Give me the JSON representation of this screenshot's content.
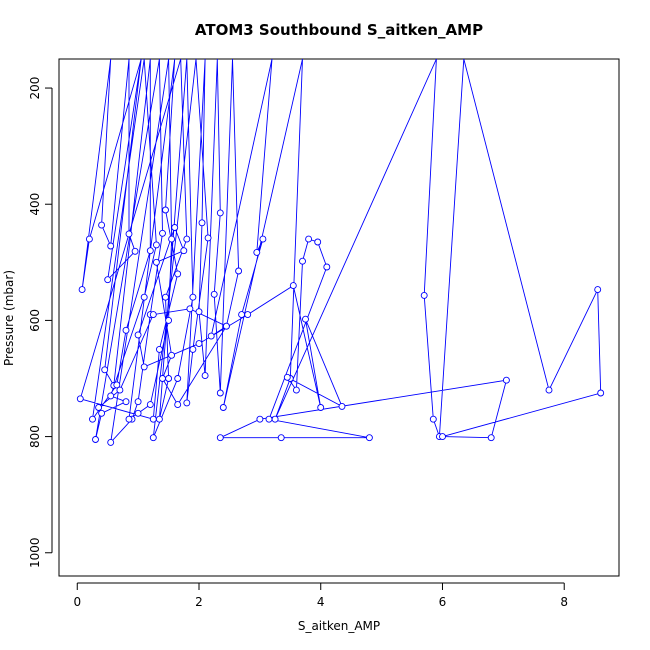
{
  "chart_data": {
    "type": "line",
    "title": "ATOM3 Southbound S_aitken_AMP",
    "xlabel": "S_aitken_AMP",
    "ylabel": "Pressure (mbar)",
    "xlim": [
      -0.3,
      8.9
    ],
    "ylim": [
      1040,
      150
    ],
    "y_reversed": true,
    "grid": false,
    "x_ticks": [
      "0",
      "2",
      "4",
      "6",
      "8"
    ],
    "y_ticks": [
      "200",
      "400",
      "600",
      "800",
      "1000"
    ],
    "series": [
      {
        "color": "#0000ff",
        "marker": "open-circle",
        "points": [
          [
            1.05,
            150
          ],
          [
            0.2,
            460
          ],
          [
            0.08,
            547
          ],
          [
            0.55,
            150
          ],
          [
            0.4,
            436
          ],
          [
            0.55,
            472
          ],
          [
            0.85,
            150
          ],
          [
            0.85,
            451
          ],
          [
            0.95,
            481
          ],
          [
            0.5,
            530
          ],
          [
            1.05,
            150
          ],
          [
            0.45,
            685
          ],
          [
            0.6,
            712
          ],
          [
            1.2,
            150
          ],
          [
            1.2,
            480
          ],
          [
            0.8,
            617
          ],
          [
            0.65,
            711
          ],
          [
            0.25,
            770
          ],
          [
            1.1,
            150
          ],
          [
            1.3,
            470
          ],
          [
            1.1,
            560
          ],
          [
            0.55,
            730
          ],
          [
            0.8,
            740
          ],
          [
            0.4,
            760
          ],
          [
            0.3,
            805
          ],
          [
            1.35,
            150
          ],
          [
            1.4,
            450
          ],
          [
            1.2,
            590
          ],
          [
            1.0,
            740
          ],
          [
            0.9,
            770
          ],
          [
            0.55,
            810
          ],
          [
            1.5,
            150
          ],
          [
            1.55,
            460
          ],
          [
            1.5,
            600
          ],
          [
            1.2,
            745
          ],
          [
            1.0,
            760
          ],
          [
            0.85,
            770
          ],
          [
            1.6,
            150
          ],
          [
            1.45,
            410
          ],
          [
            1.65,
            520
          ],
          [
            1.35,
            650
          ],
          [
            1.25,
            770
          ],
          [
            0.05,
            735
          ],
          [
            1.7,
            150
          ],
          [
            1.8,
            460
          ],
          [
            1.45,
            560
          ],
          [
            1.5,
            700
          ],
          [
            1.35,
            770
          ],
          [
            1.8,
            150
          ],
          [
            1.9,
            560
          ],
          [
            1.65,
            700
          ],
          [
            1.25,
            802
          ],
          [
            1.95,
            150
          ],
          [
            2.15,
            458
          ],
          [
            1.9,
            650
          ],
          [
            1.8,
            742
          ],
          [
            2.1,
            150
          ],
          [
            2.05,
            432
          ],
          [
            2.0,
            585
          ],
          [
            2.1,
            695
          ],
          [
            2.3,
            150
          ],
          [
            2.35,
            415
          ],
          [
            2.25,
            555
          ],
          [
            2.35,
            725
          ],
          [
            2.55,
            150
          ],
          [
            2.65,
            515
          ],
          [
            2.45,
            610
          ],
          [
            2.2,
            627
          ],
          [
            3.2,
            150
          ],
          [
            2.95,
            483
          ],
          [
            3.05,
            460
          ],
          [
            2.7,
            590
          ],
          [
            2.4,
            750
          ],
          [
            3.7,
            150
          ],
          [
            3.5,
            700
          ],
          [
            3.25,
            770
          ],
          [
            5.9,
            150
          ],
          [
            5.7,
            557
          ],
          [
            5.85,
            770
          ],
          [
            5.95,
            800
          ],
          [
            6.35,
            150
          ],
          [
            7.75,
            720
          ],
          [
            8.55,
            547
          ],
          [
            8.6,
            725
          ],
          [
            6.0,
            800
          ],
          [
            6.8,
            802
          ],
          [
            7.05,
            703
          ],
          [
            3.0,
            770
          ],
          [
            2.35,
            802
          ],
          [
            3.35,
            802
          ],
          [
            4.8,
            802
          ],
          [
            3.15,
            770
          ],
          [
            4.1,
            508
          ],
          [
            3.95,
            465
          ],
          [
            3.8,
            460
          ],
          [
            3.7,
            498
          ],
          [
            3.6,
            720
          ],
          [
            3.45,
            698
          ],
          [
            4.35,
            748
          ],
          [
            3.75,
            598
          ],
          [
            4.0,
            750
          ],
          [
            3.55,
            540
          ],
          [
            2.8,
            590
          ],
          [
            2.0,
            640
          ],
          [
            1.1,
            680
          ],
          [
            1.0,
            625
          ],
          [
            1.6,
            440
          ],
          [
            1.75,
            480
          ],
          [
            1.3,
            500
          ],
          [
            1.55,
            660
          ],
          [
            1.4,
            700
          ],
          [
            1.65,
            745
          ],
          [
            2.45,
            610
          ],
          [
            1.85,
            580
          ],
          [
            1.25,
            590
          ],
          [
            0.7,
            720
          ],
          [
            0.35,
            750
          ]
        ]
      }
    ]
  }
}
